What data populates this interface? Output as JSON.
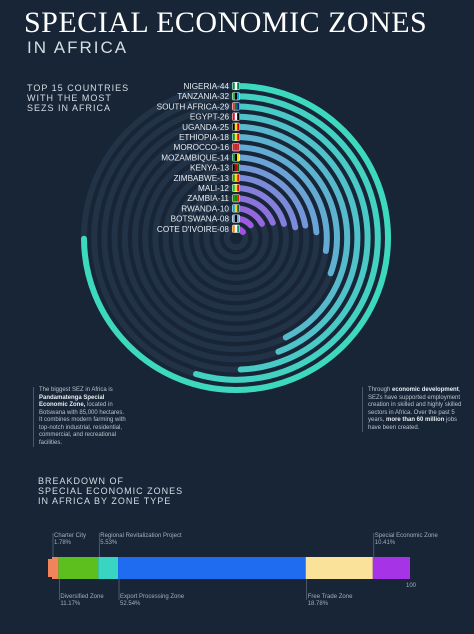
{
  "title_main": "SPECIAL ECONOMIC ZONES",
  "title_sub": "IN AFRICA",
  "subtitle_lines": [
    "TOP 15 COUNTRIES",
    "WITH THE MOST",
    "SEZS IN AFRICA"
  ],
  "colors": {
    "background": "#182536",
    "outer": "#3dd9bf",
    "mid": "#6aa3d6",
    "inner": "#a64fe0",
    "track": "#223247"
  },
  "chart_data": [
    {
      "type": "radial_bar",
      "max": 44,
      "countries": [
        {
          "label": "NIGERIA-44",
          "name": "Nigeria",
          "value": 44,
          "flag": [
            "#008751",
            "#ffffff",
            "#008751"
          ]
        },
        {
          "label": "TANZANIA-32",
          "name": "Tanzania",
          "value": 32,
          "flag": [
            "#1eb53a",
            "#000000",
            "#00a3dd"
          ]
        },
        {
          "label": "SOUTH AFRICA-29",
          "name": "South Africa",
          "value": 29,
          "flag": [
            "#de3831",
            "#007a4d",
            "#002395"
          ]
        },
        {
          "label": "EGYPT-26",
          "name": "Egypt",
          "value": 26,
          "flag": [
            "#ce1126",
            "#ffffff",
            "#000000"
          ]
        },
        {
          "label": "UGANDA-25",
          "name": "Uganda",
          "value": 25,
          "flag": [
            "#000000",
            "#fcdc04",
            "#d90000"
          ]
        },
        {
          "label": "ETHIOPIA-18",
          "name": "Ethiopia",
          "value": 18,
          "flag": [
            "#078930",
            "#fcdd09",
            "#da121a"
          ]
        },
        {
          "label": "MOROCCO-16",
          "name": "Morocco",
          "value": 16,
          "flag": [
            "#c1272d",
            "#c1272d",
            "#c1272d"
          ]
        },
        {
          "label": "MOZAMBIQUE-14",
          "name": "Mozambique",
          "value": 14,
          "flag": [
            "#009a44",
            "#000000",
            "#fce100"
          ]
        },
        {
          "label": "KENYA-13",
          "name": "Kenya",
          "value": 13,
          "flag": [
            "#000000",
            "#bb0000",
            "#006600"
          ]
        },
        {
          "label": "ZIMBABWE-13",
          "name": "Zimbabwe",
          "value": 13,
          "flag": [
            "#319208",
            "#ffd200",
            "#de2010"
          ]
        },
        {
          "label": "MALI-12",
          "name": "Mali",
          "value": 12,
          "flag": [
            "#14b53a",
            "#fcd116",
            "#ce1126"
          ]
        },
        {
          "label": "ZAMBIA-11",
          "name": "Zambia",
          "value": 11,
          "flag": [
            "#198a00",
            "#198a00",
            "#de2010"
          ]
        },
        {
          "label": "RWANDA-10",
          "name": "Rwanda",
          "value": 10,
          "flag": [
            "#00a1de",
            "#fad201",
            "#20603d"
          ]
        },
        {
          "label": "BOTSWANA-08",
          "name": "Botswana",
          "value": 8,
          "flag": [
            "#6da9d2",
            "#000000",
            "#6da9d2"
          ]
        },
        {
          "label": "COTE D'IVOIRE-08",
          "name": "Cote d'Ivoire",
          "value": 8,
          "flag": [
            "#f77f00",
            "#ffffff",
            "#009e60"
          ]
        }
      ]
    },
    {
      "type": "stacked_bar",
      "title_lines": [
        "BREAKDOWN OF",
        "SPECIAL ECONOMIC ZONES",
        "IN AFRICA BY ZONE TYPE"
      ],
      "axis_end_label": "100",
      "segments": [
        {
          "name": "Charter City",
          "value": 1.78,
          "value_label": "1.78%",
          "color": "#f2845c",
          "label_pos": "top"
        },
        {
          "name": "Diversified Zone",
          "value": 11.17,
          "value_label": "11.17%",
          "color": "#5cbf1e",
          "label_pos": "bottom"
        },
        {
          "name": "Regional Revitalization Project",
          "value": 5.53,
          "value_label": "5.53%",
          "color": "#38d6c2",
          "label_pos": "top"
        },
        {
          "name": "Export Processing Zone",
          "value": 52.54,
          "value_label": "52.54%",
          "color": "#1f6cf0",
          "label_pos": "bottom"
        },
        {
          "name": "Free Trade Zone",
          "value": 18.78,
          "value_label": "18.78%",
          "color": "#fbe29a",
          "label_pos": "bottom"
        },
        {
          "name": "Special Economic Zone",
          "value": 10.41,
          "value_label": "10.41%",
          "color": "#a733e6",
          "label_pos": "top"
        }
      ]
    }
  ],
  "blurb_left": {
    "intro": "The biggest SEZ in Africa is ",
    "bold": "Pandamatenga Special Economic Zone,",
    "rest": " located in Botswana with 85,000 hectares. It combines modern farming with top-notch industrial, residential, commercial, and recreational facilities."
  },
  "blurb_right": {
    "p1": "Through ",
    "b1": "economic development",
    "p2": ", SEZs have supported employment creation in skilled and highly skilled sectors in Africa. Over the past 5 years, ",
    "b2": "more than 60 million",
    "p3": " jobs have been created."
  }
}
